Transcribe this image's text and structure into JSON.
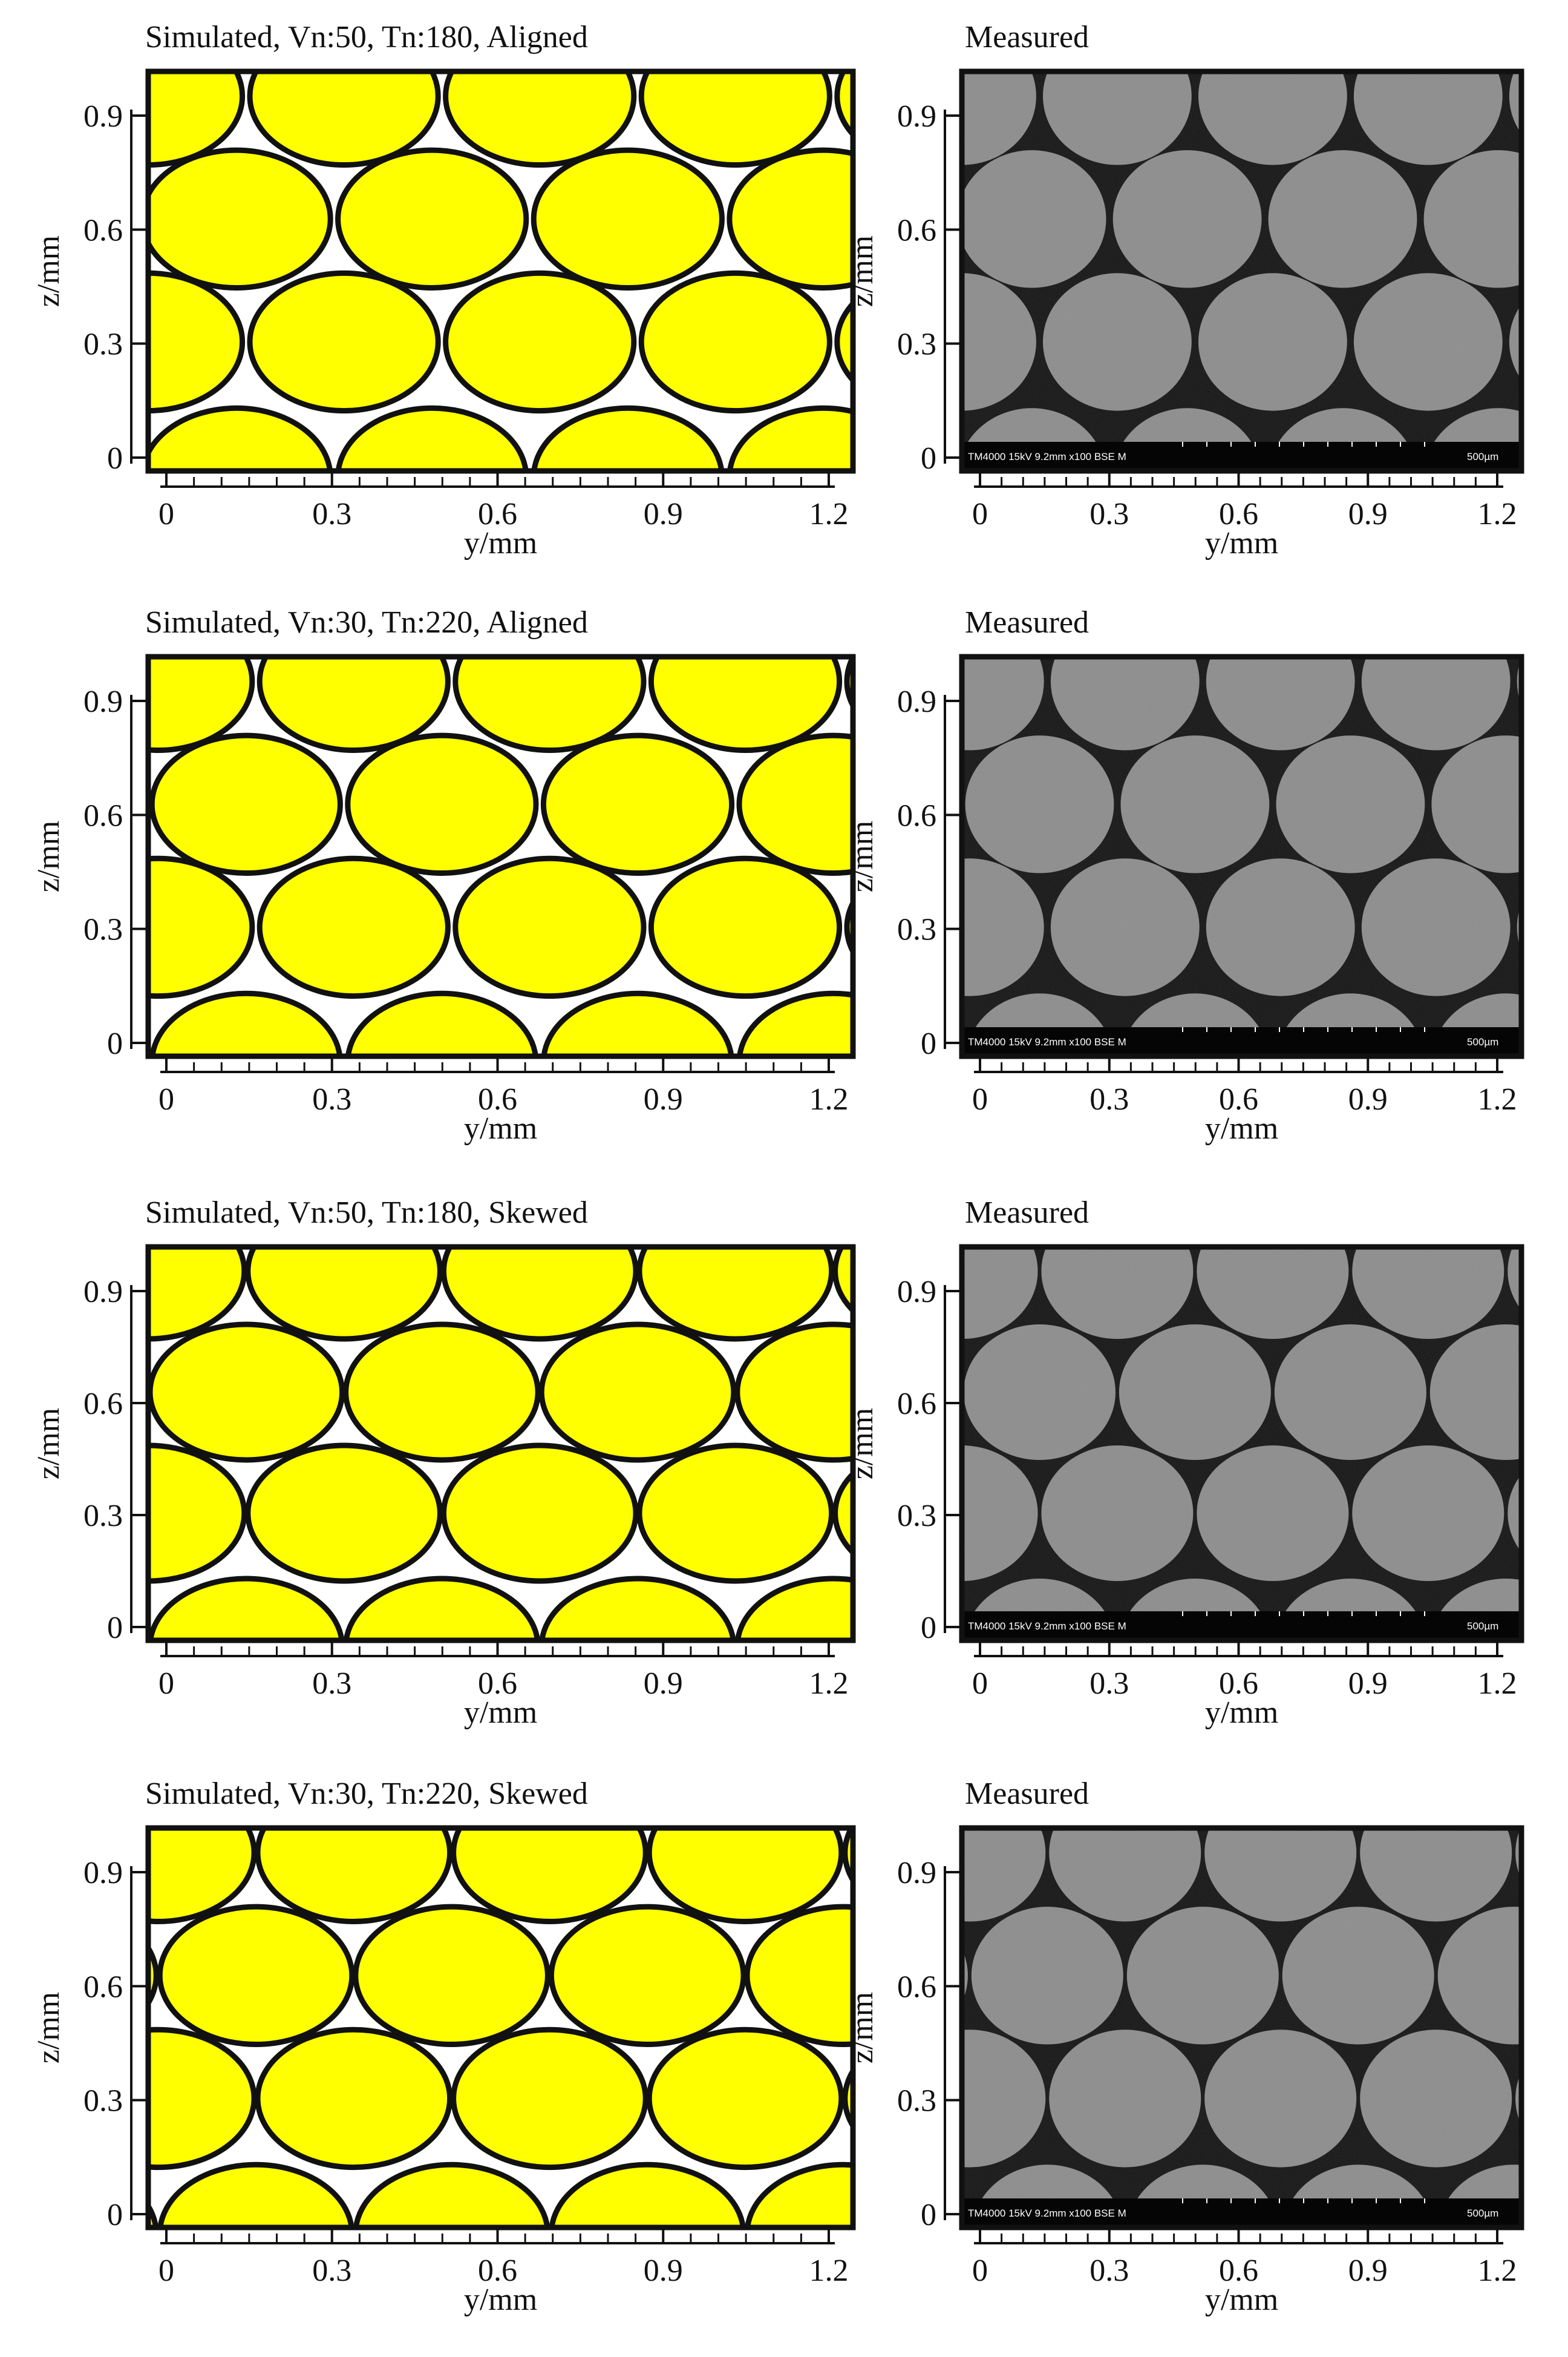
{
  "figure": {
    "colors": {
      "fiber_fill": "#ffff00",
      "fiber_outline": "#111111",
      "void_sim": "#ffffff",
      "sem_gray": "#8a8a8a",
      "sem_void": "#0d0d0d",
      "scale_bar_bg": "#050505"
    },
    "panels": [
      {
        "kind": "simulated",
        "title": "Simulated, Vn:50, Tn:180, Aligned",
        "xlabel": "y/mm",
        "ylabel": "z/mm",
        "xticks": [
          "0",
          "0.3",
          "0.6",
          "0.9",
          "1.2"
        ],
        "yticks": [
          "0",
          "0.3",
          "0.6",
          "0.9"
        ],
        "pattern": "aligned"
      },
      {
        "kind": "measured",
        "title": "Measured",
        "xlabel": "y/mm",
        "ylabel": "z/mm",
        "xticks": [
          "0",
          "0.3",
          "0.6",
          "0.9",
          "1.2"
        ],
        "yticks": [
          "0",
          "0.3",
          "0.6",
          "0.9"
        ],
        "pattern": "aligned",
        "scale_bar_left": "TM4000 15kV 9.2mm x100 BSE M",
        "scale_bar_right": "500µm"
      },
      {
        "kind": "simulated",
        "title": "Simulated, Vn:30, Tn:220, Aligned",
        "xlabel": "y/mm",
        "ylabel": "z/mm",
        "xticks": [
          "0",
          "0.3",
          "0.6",
          "0.9",
          "1.2"
        ],
        "yticks": [
          "0",
          "0.3",
          "0.6",
          "0.9"
        ],
        "pattern": "aligned"
      },
      {
        "kind": "measured",
        "title": "Measured",
        "xlabel": "y/mm",
        "ylabel": "z/mm",
        "xticks": [
          "0",
          "0.3",
          "0.6",
          "0.9",
          "1.2"
        ],
        "yticks": [
          "0",
          "0.3",
          "0.6",
          "0.9"
        ],
        "pattern": "aligned",
        "scale_bar_left": "TM4000 15kV 9.2mm x100 BSE M",
        "scale_bar_right": "500µm"
      },
      {
        "kind": "simulated",
        "title": "Simulated, Vn:50, Tn:180, Skewed",
        "xlabel": "y/mm",
        "ylabel": "z/mm",
        "xticks": [
          "0",
          "0.3",
          "0.6",
          "0.9",
          "1.2"
        ],
        "yticks": [
          "0",
          "0.3",
          "0.6",
          "0.9"
        ],
        "pattern": "skewed"
      },
      {
        "kind": "measured",
        "title": "Measured",
        "xlabel": "y/mm",
        "ylabel": "z/mm",
        "xticks": [
          "0",
          "0.3",
          "0.6",
          "0.9",
          "1.2"
        ],
        "yticks": [
          "0",
          "0.3",
          "0.6",
          "0.9"
        ],
        "pattern": "skewed",
        "scale_bar_left": "TM4000 15kV 9.2mm x100 BSE M",
        "scale_bar_right": "500µm"
      },
      {
        "kind": "simulated",
        "title": "Simulated, Vn:30, Tn:220, Skewed",
        "xlabel": "y/mm",
        "ylabel": "z/mm",
        "xticks": [
          "0",
          "0.3",
          "0.6",
          "0.9",
          "1.2"
        ],
        "yticks": [
          "0",
          "0.3",
          "0.6",
          "0.9"
        ],
        "pattern": "skewed"
      },
      {
        "kind": "measured",
        "title": "Measured",
        "xlabel": "y/mm",
        "ylabel": "z/mm",
        "xticks": [
          "0",
          "0.3",
          "0.6",
          "0.9",
          "1.2"
        ],
        "yticks": [
          "0",
          "0.3",
          "0.6",
          "0.9"
        ],
        "pattern": "skewed",
        "scale_bar_left": "TM4000 15kV 9.2mm x100 BSE M",
        "scale_bar_right": "500µm"
      }
    ]
  }
}
